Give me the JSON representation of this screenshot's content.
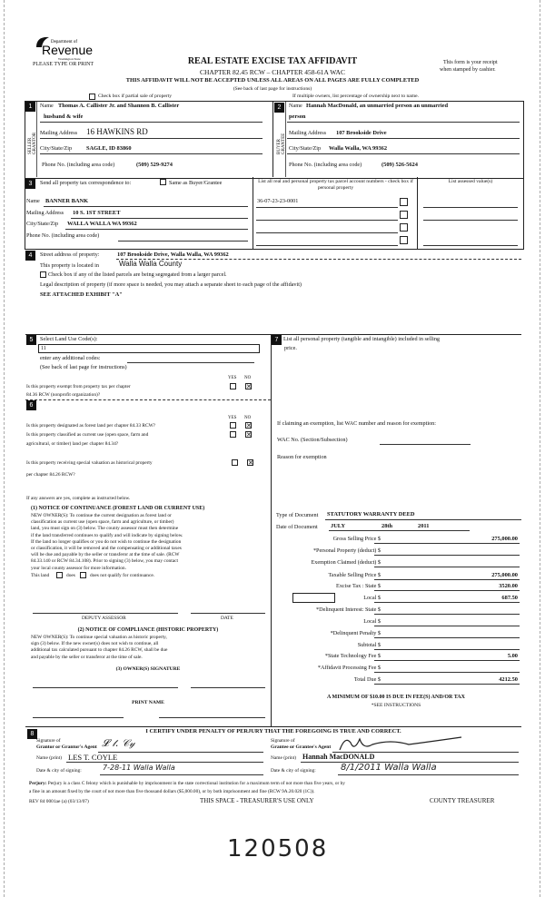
{
  "header": {
    "agency_logo": "Department of Revenue Washington State",
    "please": "PLEASE TYPE OR PRINT",
    "title": "REAL ESTATE EXCISE TAX AFFIDAVIT",
    "chapter": "CHAPTER 82.45 RCW – CHAPTER 458-61A WAC",
    "warning": "THIS AFFIDAVIT WILL NOT BE ACCEPTED UNLESS ALL AREAS ON ALL PAGES ARE FULLY COMPLETED",
    "see_back": "(See back of last page for instructions)",
    "receipt": "This form is your receipt",
    "receipt2": "when stamped by cashier.",
    "partial_sale": "Check box if partial sale of property",
    "multiple_owners": "If multiple owners, list percentage of ownership next to name."
  },
  "seller": {
    "num": "1",
    "side_label": "SELLER GRANTOR",
    "name_label": "Name",
    "name": "Thomas A. Callister Jr. and Shannon B. Callister",
    "name2": "husband & wife",
    "address_label": "Mailing Address",
    "address": "16 HAWKINS RD",
    "city_label": "City/State/Zip",
    "city": "SAGLE, ID 83860",
    "phone_label": "Phone No. (including area code)",
    "phone": "(509) 529-9274"
  },
  "buyer": {
    "num": "2",
    "side_label": "BUYER GRANTEE",
    "name_label": "Name",
    "name": "Hannah MacDonald, an unmarried person an unmarried",
    "name2": "person",
    "address_label": "Mailing Address",
    "address": "107 Brookside Drive",
    "city_label": "City/State/Zip",
    "city": "Walla Walla, WA 99362",
    "phone_label": "Phone No. (including area code)",
    "phone": "(509) 526-5624"
  },
  "section3": {
    "num": "3",
    "send_label": "Send all property tax correspondence to:",
    "same_label": "Same as Buyer/Grantee",
    "name_label": "Name",
    "name": "BANNER BANK",
    "address_label": "Mailing Address",
    "address": "10 S. 1ST STREET",
    "city_label": "City/State/Zip",
    "city": "WALLA WALLA WA 99362",
    "phone_label": "Phone No. (including area code)",
    "parcel_header": "List all real and personal property tax parcel account numbers - check box if personal property",
    "value_header": "List assessed value(s)",
    "parcel1": "36-07-23-23-0001"
  },
  "section4": {
    "num": "4",
    "street_label": "Street address of property:",
    "street": "107 Brookside Drive, Walla Walla, WA 99362",
    "located_label": "This property is located in",
    "county": "Walla Walla County",
    "segregated": "Check box if any of the listed parcels are being segregated from a larger parcel.",
    "legal_label": "Legal description of property (if more space is needed, you may attach a separate sheet to each page of the affidavit)",
    "legal": "SEE ATTACHED EXHIBIT \"A\""
  },
  "section5": {
    "num": "5",
    "land_use_label": "Select Land Use Code(s):",
    "land_use": "11",
    "additional": "enter any additional codes:",
    "see_back": "(See back of last page for instructions)",
    "yes": "YES",
    "no": "NO",
    "q_exempt": "Is this property exempt from property tax per chapter",
    "q_exempt2": "84.36 RCW (nonprofit organization)?"
  },
  "section6": {
    "num": "6",
    "yes": "YES",
    "no": "NO",
    "q_forest": "Is this property designated as forest land per chapter 84.33 RCW?",
    "q_current": "Is this property classified as current use (open space, farm and",
    "q_current2": "agricultural, or timber) land per chapter 84.34?",
    "q_hist": "Is this property receiving special valuation as historical property",
    "q_hist2": "per chapter 84.26 RCW?",
    "if_yes": "If any answers are yes, complete as instructed below.",
    "n1_title": "(1) NOTICE OF CONTINUANCE (FOREST LAND OR CURRENT USE)",
    "n1_lines": [
      "NEW OWNER(S): To continue the current designation as forest land or",
      "classification as current use (open space, farm and agriculture, or timber)",
      "land, you must sign on (3) below. The county assessor must then determine",
      "if the land transferred continues to qualify and will indicate by signing below.",
      "If the land no longer qualifies or you do not wish to continue the designation",
      "or classification, it will be removed and the compensating or additional taxes",
      "will be due and payable by the seller or transferor at the time of sale. (RCW",
      "84.33.140 or RCW 84.34.108). Prior to signing (3) below, you may contact",
      "your local county assessor for more information."
    ],
    "this_land": "This land",
    "does": "does",
    "does_not": "does not qualify for continuance.",
    "deputy": "DEPUTY ASSESSOR",
    "date": "DATE",
    "n2_title": "(2) NOTICE OF COMPLIANCE (HISTORIC PROPERTY)",
    "n2_lines": [
      "NEW OWNER(S): To continue special valuation as historic property,",
      "sign (3) below. If the new owner(s) does not wish to continue, all",
      "additional tax calculated pursuant to chapter 84.26 RCW, shall be due",
      "and payable by the seller or transferor at the time of sale."
    ],
    "n3_title": "(3) OWNER(S) SIGNATURE",
    "print_name": "PRINT NAME"
  },
  "section7": {
    "num": "7",
    "personal": "List all personal property (tangible and intangible) included in selling",
    "personal2": "price.",
    "exemption": "If claiming an exemption, list WAC number and reason for exemption:",
    "wac_label": "WAC No. (Section/Subsection)",
    "reason_label": "Reason for exemption",
    "doc_type_label": "Type of Document",
    "doc_type": "STATUTORY WARRANTY DEED",
    "doc_date_label": "Date of Document",
    "doc_month": "JULY",
    "doc_day": "28th",
    "doc_year": "2011",
    "fees": [
      {
        "label": "Gross Selling Price $",
        "value": "275,000.00"
      },
      {
        "label": "*Personal Property (deduct) $",
        "value": ""
      },
      {
        "label": "Exemption Claimed (deduct) $",
        "value": ""
      },
      {
        "label": "Taxable Selling Price $",
        "value": "275,000.00"
      },
      {
        "label": "Excise Tax : State $",
        "value": "3520.00"
      },
      {
        "label": "Local $",
        "value": "687.50"
      },
      {
        "label": "*Delinquent Interest: State $",
        "value": ""
      },
      {
        "label": "Local $",
        "value": ""
      },
      {
        "label": "*Delinquent Penalty $",
        "value": ""
      },
      {
        "label": "Subtotal $",
        "value": ""
      },
      {
        "label": "*State Technology Fee $",
        "value": "5.00"
      },
      {
        "label": "*Affidavit Processing Fee $",
        "value": ""
      },
      {
        "label": "Total Due $",
        "value": "4212.50"
      }
    ],
    "minimum": "A MINIMUM OF $10.00 IS DUE IN FEE(S) AND/OR TAX",
    "see_instr": "*SEE INSTRUCTIONS"
  },
  "section8": {
    "num": "8",
    "certify": "I CERTIFY UNDER PENALTY OF PERJURY THAT THE FOREGOING IS TRUE AND CORRECT.",
    "sig_of": "Signature of",
    "grantor_agent": "Grantor or Grantor's Agent",
    "grantee_agent": "Grantee or Grantee's Agent",
    "name_print": "Name (print)",
    "grantor_name": "LES T. COYLE",
    "grantee_name": "Hannah MacDONALD",
    "date_city": "Date & city of signing:",
    "grantor_date": "7-28-11   Walla Walla",
    "grantee_date": "8/1/2011   Walla Walla",
    "perjury_bold": "Perjury:",
    "perjury": "Perjury is a class C felony which is punishable by imprisonment in the state correctional institution for a maximum term of not more than five years, or by",
    "perjury2": "a fine in an amount fixed by the court of not more than five thousand dollars ($5,000.00), or by both imprisonment and fine (RCW 9A.20.020 (1C))."
  },
  "footer": {
    "rev": "REV 84 0001ae (a) (03/13/07)",
    "treasurer_space": "THIS SPACE - TREASURER'S USE ONLY",
    "county_treasurer": "COUNTY TREASURER",
    "handwritten_number": "120508"
  }
}
